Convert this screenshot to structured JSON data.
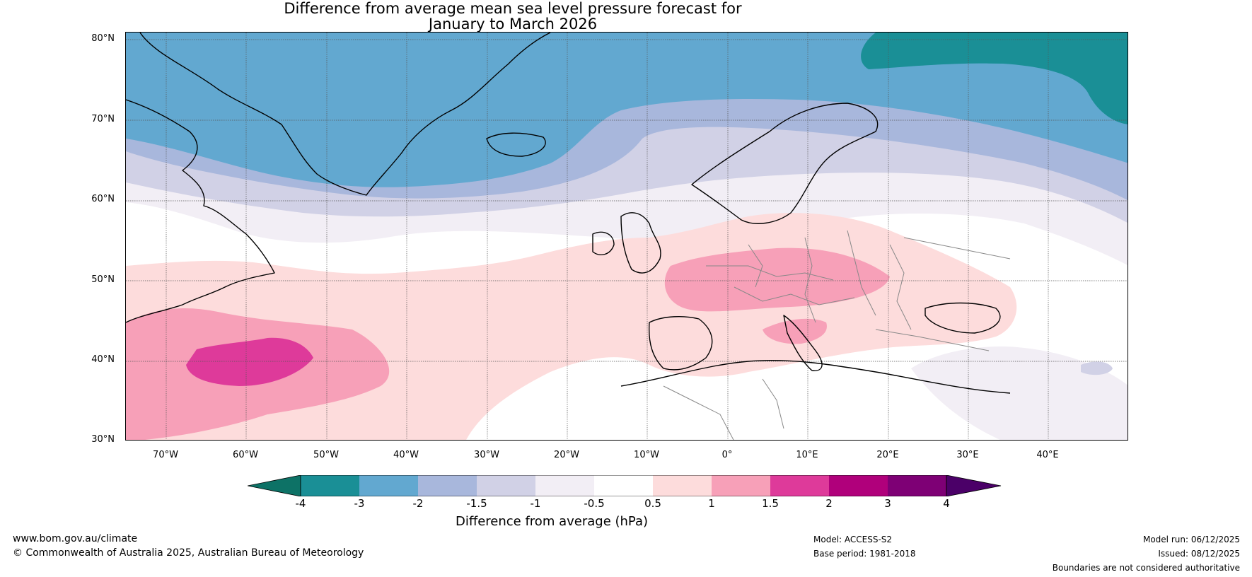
{
  "map": {
    "title_line1": "Difference from average mean sea level pressure forecast for",
    "title_line2": "January to March 2026",
    "lat_labels": [
      "80°N",
      "70°N",
      "60°N",
      "50°N",
      "40°N",
      "30°N"
    ],
    "lon_labels": [
      "70°W",
      "60°W",
      "50°W",
      "40°W",
      "30°W",
      "20°W",
      "10°W",
      "0°",
      "10°E",
      "20°E",
      "30°E",
      "40°E"
    ],
    "extent": {
      "lon_min": -75,
      "lon_max": 50,
      "lat_min": 30,
      "lat_max": 81
    }
  },
  "colorbar": {
    "label": "Difference from average (hPa)",
    "ticks": [
      "-4",
      "-3",
      "-2",
      "-1.5",
      "-1",
      "-0.5",
      "0.5",
      "1",
      "1.5",
      "2",
      "3",
      "4"
    ],
    "colors": {
      "below": "#0d7266",
      "bins": [
        "#1a8f96",
        "#62a8d0",
        "#a8b7dc",
        "#d1d1e6",
        "#f2eef5",
        "#ffffff",
        "#fddcdc",
        "#f7a0b8",
        "#de3a9a",
        "#b0007b",
        "#7e0075"
      ],
      "above": "#4b0068"
    }
  },
  "footer": {
    "website": "www.bom.gov.au/climate",
    "copyright": "© Commonwealth of Australia 2025, Australian Bureau of Meteorology",
    "model": "Model: ACCESS-S2",
    "base_period": "Base period: 1981-2018",
    "model_run": "Model run: 06/12/2025",
    "issued": "Issued: 08/12/2025",
    "disclaimer": "Boundaries are not considered authoritative"
  }
}
